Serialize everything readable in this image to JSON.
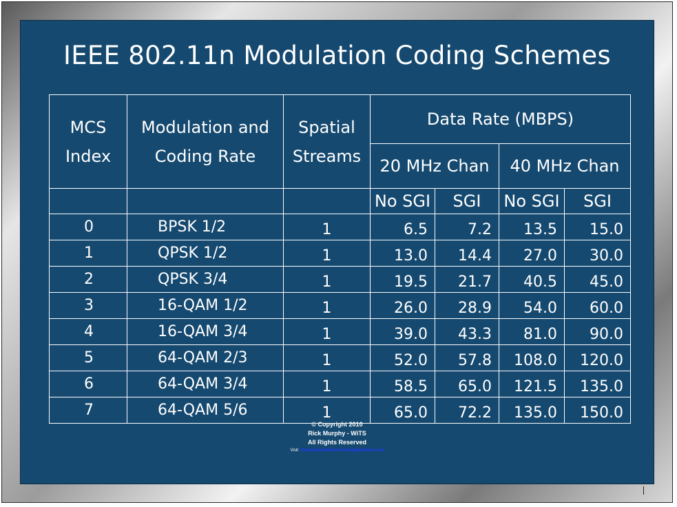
{
  "title": "IEEE 802.11n Modulation Coding Schemes",
  "table": {
    "headers": {
      "mcs_index": "MCS Index",
      "mcs_line1": "MCS",
      "mcs_line2": "Index",
      "modulation_line1": "Modulation and",
      "modulation_line2": "Coding Rate",
      "spatial_line1": "Spatial",
      "spatial_line2": "Streams",
      "data_rate": "Data Rate (MBPS)",
      "chan20": "20 MHz Chan",
      "chan40": "40 MHz Chan",
      "no_sgi": "No SGI",
      "sgi": "SGI"
    },
    "rows": [
      {
        "mcs": "0",
        "modulation": "BPSK 1/2",
        "streams": "1",
        "no_sgi_20": "6.5",
        "sgi_20": "7.2",
        "no_sgi_40": "13.5",
        "sgi_40": "15.0"
      },
      {
        "mcs": "1",
        "modulation": "QPSK 1/2",
        "streams": "1",
        "no_sgi_20": "13.0",
        "sgi_20": "14.4",
        "no_sgi_40": "27.0",
        "sgi_40": "30.0"
      },
      {
        "mcs": "2",
        "modulation": "QPSK 3/4",
        "streams": "1",
        "no_sgi_20": "19.5",
        "sgi_20": "21.7",
        "no_sgi_40": "40.5",
        "sgi_40": "45.0"
      },
      {
        "mcs": "3",
        "modulation": "16-QAM 1/2",
        "streams": "1",
        "no_sgi_20": "26.0",
        "sgi_20": "28.9",
        "no_sgi_40": "54.0",
        "sgi_40": "60.0"
      },
      {
        "mcs": "4",
        "modulation": "16-QAM 3/4",
        "streams": "1",
        "no_sgi_20": "39.0",
        "sgi_20": "43.3",
        "no_sgi_40": "81.0",
        "sgi_40": "90.0"
      },
      {
        "mcs": "5",
        "modulation": "64-QAM 2/3",
        "streams": "1",
        "no_sgi_20": "52.0",
        "sgi_20": "57.8",
        "no_sgi_40": "108.0",
        "sgi_40": "120.0"
      },
      {
        "mcs": "6",
        "modulation": "64-QAM 3/4",
        "streams": "1",
        "no_sgi_20": "58.5",
        "sgi_20": "65.0",
        "no_sgi_40": "121.5",
        "sgi_40": "135.0"
      },
      {
        "mcs": "7",
        "modulation": "64-QAM 5/6",
        "streams": "1",
        "no_sgi_20": "65.0",
        "sgi_20": "72.2",
        "no_sgi_40": "135.0",
        "sgi_40": "150.0"
      }
    ]
  },
  "footer": {
    "copyright": "© Copyright 2010",
    "author": "Rick Murphy - WiTS",
    "rights": "All Rights Reserved",
    "visit_label": "Visit:",
    "link_text": "http://www.WirelessTrainingSolutions.com"
  },
  "colors": {
    "slide_background": "#15496f",
    "text": "#ffffff",
    "link": "#1e3cff"
  }
}
